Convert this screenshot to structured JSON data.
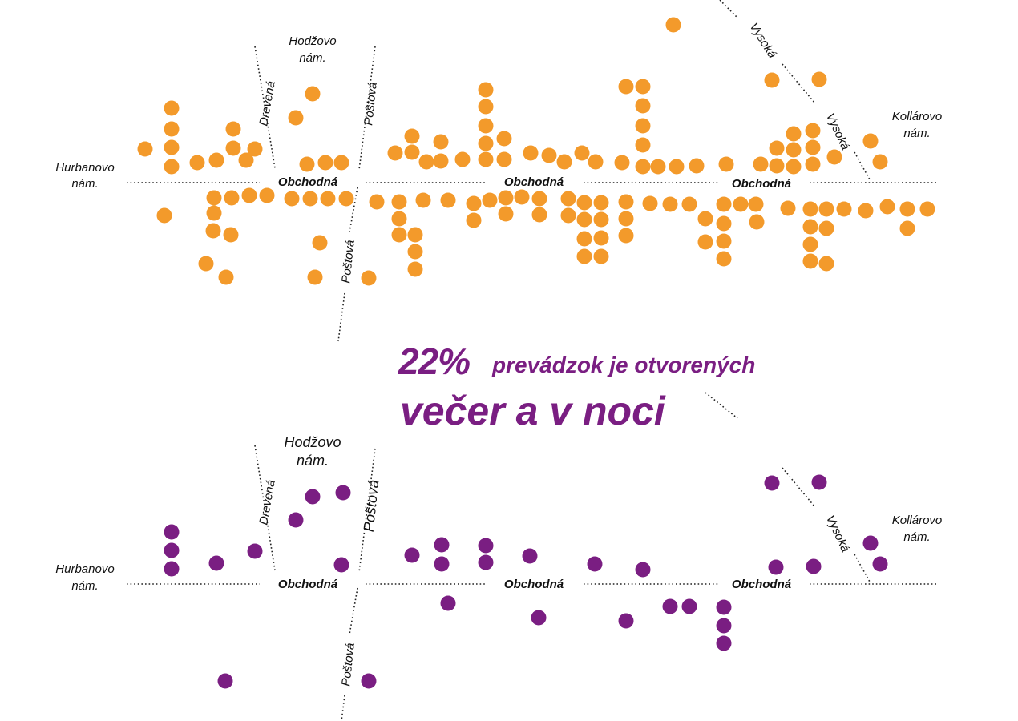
{
  "headline": {
    "percent": "22%",
    "line1": "prevádzok je otvorených",
    "line2": "večer a v noci"
  },
  "colors": {
    "all_hours": "#f39a2b",
    "evening_night": "#7a1e82",
    "streets": "#111111"
  },
  "maps": [
    {
      "id": "all",
      "color": "#f39a2b",
      "labels": {
        "hurbanovo": [
          "Hurbanovo",
          "nám."
        ],
        "hodzovo": [
          "Hodžovo",
          "nám."
        ],
        "kollarovo": [
          "Kollárovo",
          "nám."
        ],
        "drevena": "Drevená",
        "postova_top": "Poštová",
        "postova_bottom": "Poštová",
        "vysoka_a": "Vysoká",
        "vysoka_b": "Vysoká",
        "obchodna_1": "Obchodná",
        "obchodna_2": "Obchodná",
        "obchodna_3": "Obchodná"
      },
      "shop_count": 136
    },
    {
      "id": "evening",
      "color": "#7a1e82",
      "labels": {
        "hurbanovo": [
          "Hurbanovo",
          "nám."
        ],
        "hodzovo": [
          "Hodžovo",
          "nám."
        ],
        "kollarovo": [
          "Kollárovo",
          "nám."
        ],
        "drevena": "Drevená",
        "postova_top": "Poštová",
        "postova_bottom": "Poštová",
        "vysoka_a": "Vysoká",
        "obchodna_1": "Obchodná",
        "obchodna_2": "Obchodná",
        "obchodna_3": "Obchodná"
      },
      "shop_count": 30
    }
  ]
}
